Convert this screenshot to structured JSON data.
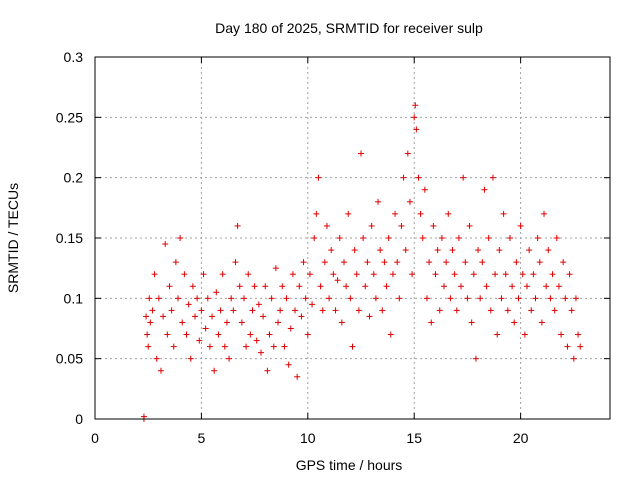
{
  "chart_data": {
    "type": "scatter",
    "title": "Day 180 of 2025, SRMTID for receiver sulp",
    "xlabel": "GPS time / hours",
    "ylabel": "SRMTID / TECUs",
    "xlim": [
      0,
      24.2
    ],
    "ylim": [
      0,
      0.3
    ],
    "x_ticks": [
      0,
      5,
      10,
      15,
      20
    ],
    "x_tick_labels": [
      "0",
      "5",
      "10",
      "15",
      "20"
    ],
    "y_ticks": [
      0,
      0.05,
      0.1,
      0.15,
      0.2,
      0.25,
      0.3
    ],
    "y_tick_labels": [
      "0",
      "0.05",
      "0.1",
      "0.15",
      "0.2",
      "0.25",
      "0.3"
    ],
    "grid": true,
    "legend": "none",
    "marker": "plus",
    "color": "#e00000",
    "series": [
      {
        "values_description_omitted": true,
        "points": [
          [
            2.3,
            0.0
          ],
          [
            2.3,
            0.002
          ],
          [
            2.4,
            0.085
          ],
          [
            2.45,
            0.07
          ],
          [
            2.5,
            0.06
          ],
          [
            2.55,
            0.1
          ],
          [
            2.6,
            0.08
          ],
          [
            2.7,
            0.09
          ],
          [
            2.8,
            0.12
          ],
          [
            2.9,
            0.05
          ],
          [
            3.0,
            0.1
          ],
          [
            3.1,
            0.04
          ],
          [
            3.2,
            0.085
          ],
          [
            3.3,
            0.145
          ],
          [
            3.4,
            0.07
          ],
          [
            3.5,
            0.11
          ],
          [
            3.6,
            0.09
          ],
          [
            3.7,
            0.06
          ],
          [
            3.8,
            0.13
          ],
          [
            3.9,
            0.1
          ],
          [
            4.0,
            0.15
          ],
          [
            4.1,
            0.08
          ],
          [
            4.2,
            0.12
          ],
          [
            4.3,
            0.07
          ],
          [
            4.4,
            0.095
          ],
          [
            4.5,
            0.05
          ],
          [
            4.6,
            0.11
          ],
          [
            4.7,
            0.085
          ],
          [
            4.8,
            0.1
          ],
          [
            4.9,
            0.065
          ],
          [
            5.0,
            0.09
          ],
          [
            5.1,
            0.12
          ],
          [
            5.2,
            0.075
          ],
          [
            5.3,
            0.1
          ],
          [
            5.4,
            0.06
          ],
          [
            5.5,
            0.085
          ],
          [
            5.6,
            0.04
          ],
          [
            5.7,
            0.105
          ],
          [
            5.8,
            0.07
          ],
          [
            5.9,
            0.09
          ],
          [
            6.0,
            0.12
          ],
          [
            6.1,
            0.06
          ],
          [
            6.2,
            0.08
          ],
          [
            6.3,
            0.05
          ],
          [
            6.4,
            0.1
          ],
          [
            6.5,
            0.09
          ],
          [
            6.6,
            0.13
          ],
          [
            6.7,
            0.16
          ],
          [
            6.8,
            0.11
          ],
          [
            6.9,
            0.08
          ],
          [
            7.0,
            0.1
          ],
          [
            7.1,
            0.06
          ],
          [
            7.2,
            0.12
          ],
          [
            7.3,
            0.07
          ],
          [
            7.4,
            0.09
          ],
          [
            7.5,
            0.11
          ],
          [
            7.6,
            0.065
          ],
          [
            7.7,
            0.095
          ],
          [
            7.8,
            0.055
          ],
          [
            7.9,
            0.085
          ],
          [
            8.0,
            0.11
          ],
          [
            8.1,
            0.04
          ],
          [
            8.2,
            0.07
          ],
          [
            8.3,
            0.1
          ],
          [
            8.4,
            0.06
          ],
          [
            8.5,
            0.125
          ],
          [
            8.6,
            0.08
          ],
          [
            8.7,
            0.09
          ],
          [
            8.8,
            0.11
          ],
          [
            8.9,
            0.06
          ],
          [
            9.0,
            0.1
          ],
          [
            9.1,
            0.045
          ],
          [
            9.2,
            0.075
          ],
          [
            9.3,
            0.12
          ],
          [
            9.4,
            0.09
          ],
          [
            9.5,
            0.035
          ],
          [
            9.6,
            0.11
          ],
          [
            9.7,
            0.085
          ],
          [
            9.8,
            0.13
          ],
          [
            9.9,
            0.1
          ],
          [
            10.0,
            0.07
          ],
          [
            10.1,
            0.12
          ],
          [
            10.2,
            0.095
          ],
          [
            10.3,
            0.15
          ],
          [
            10.4,
            0.17
          ],
          [
            10.5,
            0.2
          ],
          [
            10.6,
            0.11
          ],
          [
            10.7,
            0.09
          ],
          [
            10.8,
            0.13
          ],
          [
            10.9,
            0.16
          ],
          [
            11.0,
            0.1
          ],
          [
            11.1,
            0.14
          ],
          [
            11.2,
            0.12
          ],
          [
            11.3,
            0.09
          ],
          [
            11.4,
            0.115
          ],
          [
            11.5,
            0.15
          ],
          [
            11.6,
            0.08
          ],
          [
            11.7,
            0.13
          ],
          [
            11.8,
            0.11
          ],
          [
            11.9,
            0.17
          ],
          [
            12.0,
            0.1
          ],
          [
            12.1,
            0.06
          ],
          [
            12.2,
            0.14
          ],
          [
            12.3,
            0.12
          ],
          [
            12.4,
            0.09
          ],
          [
            12.5,
            0.22
          ],
          [
            12.6,
            0.15
          ],
          [
            12.7,
            0.11
          ],
          [
            12.8,
            0.13
          ],
          [
            12.9,
            0.085
          ],
          [
            13.0,
            0.16
          ],
          [
            13.1,
            0.12
          ],
          [
            13.2,
            0.1
          ],
          [
            13.3,
            0.18
          ],
          [
            13.4,
            0.14
          ],
          [
            13.5,
            0.09
          ],
          [
            13.6,
            0.13
          ],
          [
            13.7,
            0.11
          ],
          [
            13.8,
            0.15
          ],
          [
            13.9,
            0.07
          ],
          [
            14.0,
            0.12
          ],
          [
            14.1,
            0.17
          ],
          [
            14.2,
            0.13
          ],
          [
            14.3,
            0.1
          ],
          [
            14.4,
            0.16
          ],
          [
            14.5,
            0.2
          ],
          [
            14.6,
            0.14
          ],
          [
            14.7,
            0.22
          ],
          [
            14.8,
            0.18
          ],
          [
            14.9,
            0.12
          ],
          [
            15.0,
            0.25
          ],
          [
            15.05,
            0.26
          ],
          [
            15.1,
            0.24
          ],
          [
            15.2,
            0.2
          ],
          [
            15.3,
            0.17
          ],
          [
            15.4,
            0.15
          ],
          [
            15.5,
            0.19
          ],
          [
            15.6,
            0.1
          ],
          [
            15.7,
            0.13
          ],
          [
            15.8,
            0.08
          ],
          [
            15.9,
            0.16
          ],
          [
            16.0,
            0.12
          ],
          [
            16.1,
            0.14
          ],
          [
            16.2,
            0.09
          ],
          [
            16.3,
            0.15
          ],
          [
            16.4,
            0.11
          ],
          [
            16.5,
            0.13
          ],
          [
            16.6,
            0.17
          ],
          [
            16.7,
            0.1
          ],
          [
            16.8,
            0.14
          ],
          [
            16.9,
            0.12
          ],
          [
            17.0,
            0.09
          ],
          [
            17.1,
            0.15
          ],
          [
            17.2,
            0.11
          ],
          [
            17.3,
            0.2
          ],
          [
            17.4,
            0.13
          ],
          [
            17.5,
            0.1
          ],
          [
            17.6,
            0.16
          ],
          [
            17.7,
            0.08
          ],
          [
            17.8,
            0.12
          ],
          [
            17.9,
            0.05
          ],
          [
            18.0,
            0.14
          ],
          [
            18.1,
            0.1
          ],
          [
            18.2,
            0.13
          ],
          [
            18.3,
            0.19
          ],
          [
            18.4,
            0.11
          ],
          [
            18.5,
            0.15
          ],
          [
            18.6,
            0.09
          ],
          [
            18.7,
            0.2
          ],
          [
            18.8,
            0.12
          ],
          [
            18.9,
            0.07
          ],
          [
            19.0,
            0.14
          ],
          [
            19.1,
            0.1
          ],
          [
            19.2,
            0.17
          ],
          [
            19.3,
            0.12
          ],
          [
            19.4,
            0.09
          ],
          [
            19.5,
            0.15
          ],
          [
            19.6,
            0.11
          ],
          [
            19.7,
            0.08
          ],
          [
            19.8,
            0.13
          ],
          [
            19.9,
            0.1
          ],
          [
            20.0,
            0.16
          ],
          [
            20.1,
            0.12
          ],
          [
            20.2,
            0.07
          ],
          [
            20.3,
            0.11
          ],
          [
            20.4,
            0.14
          ],
          [
            20.5,
            0.09
          ],
          [
            20.6,
            0.12
          ],
          [
            20.7,
            0.1
          ],
          [
            20.8,
            0.15
          ],
          [
            20.9,
            0.13
          ],
          [
            21.0,
            0.08
          ],
          [
            21.1,
            0.17
          ],
          [
            21.2,
            0.11
          ],
          [
            21.3,
            0.14
          ],
          [
            21.4,
            0.1
          ],
          [
            21.5,
            0.12
          ],
          [
            21.6,
            0.09
          ],
          [
            21.7,
            0.15
          ],
          [
            21.8,
            0.11
          ],
          [
            21.9,
            0.07
          ],
          [
            22.0,
            0.13
          ],
          [
            22.1,
            0.1
          ],
          [
            22.2,
            0.06
          ],
          [
            22.3,
            0.12
          ],
          [
            22.4,
            0.09
          ],
          [
            22.5,
            0.05
          ],
          [
            22.6,
            0.1
          ],
          [
            22.7,
            0.07
          ],
          [
            22.8,
            0.06
          ]
        ]
      }
    ]
  }
}
